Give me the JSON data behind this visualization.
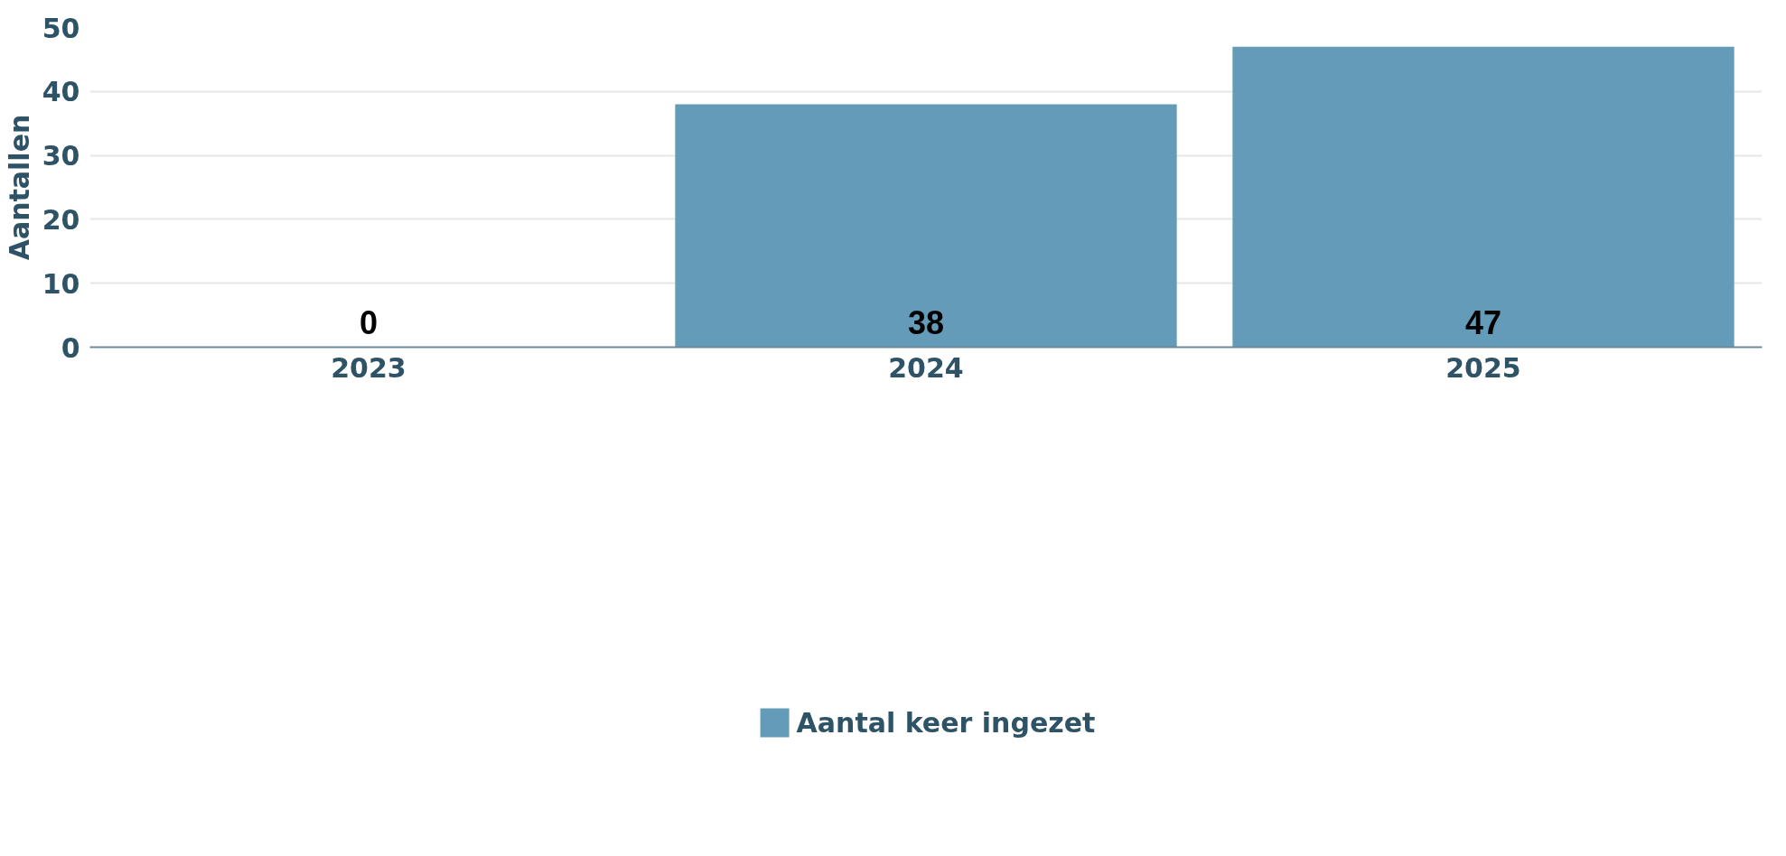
{
  "chart_data": {
    "type": "bar",
    "ylabel": "Aantallen",
    "categories": [
      "2023",
      "2024",
      "2025"
    ],
    "series": [
      {
        "name": "Aantal keer ingezet",
        "color": "#639bb9",
        "values": [
          0,
          38,
          47
        ]
      }
    ],
    "ylim": [
      0,
      50
    ],
    "yticks": [
      0,
      10,
      20,
      30,
      40,
      50
    ],
    "grid": "y",
    "legend": "bottom",
    "data_labels": true
  }
}
